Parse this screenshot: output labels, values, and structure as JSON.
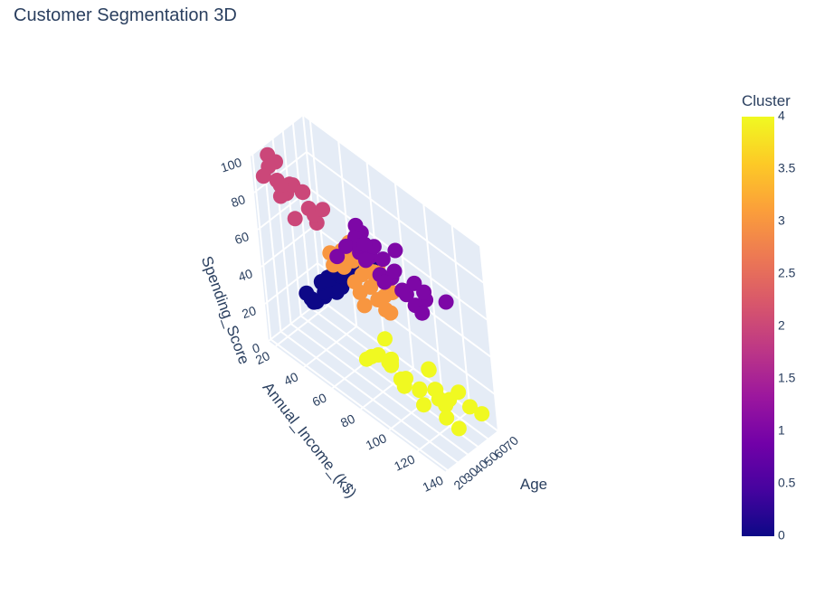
{
  "chart_data": {
    "type": "scatter",
    "mode": "3d",
    "title": "Customer Segmentation 3D",
    "axes": {
      "x": {
        "label": "Age",
        "range": [
          18,
          70
        ],
        "ticks": [
          20,
          30,
          40,
          50,
          60,
          70
        ]
      },
      "y": {
        "label": "Annual_Income_(k$)",
        "range": [
          15,
          140
        ],
        "ticks": [
          20,
          40,
          60,
          80,
          100,
          120,
          140
        ]
      },
      "z": {
        "label": "Spending_Score",
        "range": [
          0,
          100
        ],
        "ticks": [
          0,
          20,
          40,
          60,
          80,
          100
        ]
      }
    },
    "colorbar": {
      "title": "Cluster",
      "range": [
        0,
        4
      ],
      "ticks": [
        "0",
        "0.5",
        "1",
        "1.5",
        "2",
        "2.5",
        "3",
        "3.5",
        "4"
      ],
      "colorscale": [
        "#0d0887",
        "#46039f",
        "#7201a8",
        "#9c179e",
        "#bd3786",
        "#d8576b",
        "#ed7953",
        "#fb9f3a",
        "#fdca26",
        "#f0f921"
      ]
    },
    "clusters": [
      {
        "cluster": 0,
        "points": [
          [
            45,
            25,
            20
          ],
          [
            50,
            28,
            15
          ],
          [
            55,
            20,
            10
          ],
          [
            60,
            30,
            25
          ],
          [
            65,
            22,
            8
          ],
          [
            48,
            35,
            30
          ],
          [
            52,
            40,
            35
          ],
          [
            58,
            45,
            40
          ],
          [
            62,
            38,
            28
          ],
          [
            47,
            48,
            42
          ],
          [
            53,
            50,
            38
          ],
          [
            57,
            55,
            45
          ],
          [
            63,
            42,
            32
          ],
          [
            45,
            30,
            18
          ],
          [
            68,
            25,
            12
          ],
          [
            50,
            60,
            48
          ],
          [
            55,
            62,
            50
          ],
          [
            60,
            58,
            46
          ],
          [
            42,
            45,
            40
          ],
          [
            46,
            52,
            44
          ],
          [
            58,
            65,
            52
          ],
          [
            52,
            33,
            22
          ],
          [
            62,
            50,
            38
          ],
          [
            66,
            35,
            20
          ],
          [
            49,
            42,
            36
          ],
          [
            54,
            58,
            48
          ],
          [
            44,
            38,
            34
          ],
          [
            61,
            28,
            16
          ],
          [
            56,
            48,
            42
          ],
          [
            48,
            55,
            46
          ],
          [
            59,
            40,
            30
          ],
          [
            64,
            45,
            36
          ],
          [
            51,
            65,
            52
          ],
          [
            57,
            38,
            26
          ],
          [
            43,
            50,
            46
          ],
          [
            67,
            30,
            14
          ]
        ]
      },
      {
        "cluster": 1,
        "points": [
          [
            22,
            70,
            75
          ],
          [
            25,
            75,
            82
          ],
          [
            28,
            80,
            88
          ],
          [
            30,
            85,
            78
          ],
          [
            32,
            78,
            92
          ],
          [
            35,
            88,
            85
          ],
          [
            38,
            72,
            80
          ],
          [
            40,
            95,
            70
          ],
          [
            27,
            100,
            76
          ],
          [
            31,
            105,
            83
          ],
          [
            34,
            110,
            72
          ],
          [
            36,
            115,
            80
          ],
          [
            29,
            120,
            74
          ],
          [
            33,
            125,
            78
          ],
          [
            37,
            137,
            82
          ],
          [
            26,
            130,
            88
          ],
          [
            24,
            90,
            92
          ],
          [
            30,
            98,
            86
          ],
          [
            38,
            82,
            75
          ],
          [
            35,
            118,
            70
          ],
          [
            23,
            87,
            90
          ],
          [
            39,
            76,
            84
          ],
          [
            28,
            112,
            78
          ],
          [
            32,
            93,
            74
          ],
          [
            36,
            103,
            91
          ],
          [
            25,
            128,
            76
          ],
          [
            31,
            80,
            79
          ]
        ]
      },
      {
        "cluster": 2,
        "points": [
          [
            22,
            20,
            90
          ],
          [
            25,
            22,
            95
          ],
          [
            28,
            25,
            88
          ],
          [
            30,
            18,
            97
          ],
          [
            24,
            30,
            84
          ],
          [
            27,
            35,
            92
          ],
          [
            32,
            28,
            81
          ],
          [
            35,
            38,
            86
          ],
          [
            23,
            40,
            78
          ],
          [
            26,
            45,
            94
          ],
          [
            29,
            50,
            83
          ],
          [
            33,
            48,
            76
          ],
          [
            31,
            55,
            88
          ],
          [
            21,
            33,
            93
          ],
          [
            34,
            42,
            80
          ],
          [
            27,
            26,
            99
          ],
          [
            36,
            30,
            85
          ]
        ]
      },
      {
        "cluster": 3,
        "points": [
          [
            40,
            50,
            58
          ],
          [
            45,
            55,
            60
          ],
          [
            50,
            58,
            55
          ],
          [
            55,
            60,
            52
          ],
          [
            60,
            62,
            57
          ],
          [
            42,
            65,
            50
          ],
          [
            48,
            70,
            58
          ],
          [
            52,
            72,
            55
          ],
          [
            58,
            68,
            48
          ],
          [
            44,
            75,
            52
          ],
          [
            38,
            62,
            60
          ],
          [
            46,
            78,
            46
          ],
          [
            56,
            75,
            42
          ],
          [
            62,
            70,
            46
          ],
          [
            50,
            80,
            40
          ],
          [
            42,
            58,
            54
          ],
          [
            54,
            64,
            50
          ],
          [
            58,
            58,
            56
          ],
          [
            40,
            70,
            48
          ],
          [
            64,
            60,
            50
          ],
          [
            48,
            85,
            42
          ],
          [
            36,
            55,
            56
          ],
          [
            60,
            78,
            44
          ],
          [
            52,
            66,
            52
          ],
          [
            46,
            62,
            58
          ],
          [
            44,
            52,
            54
          ],
          [
            56,
            52,
            58
          ],
          [
            66,
            64,
            48
          ],
          [
            38,
            74,
            44
          ],
          [
            50,
            60,
            61
          ],
          [
            47,
            67,
            53
          ]
        ]
      },
      {
        "cluster": 4,
        "points": [
          [
            40,
            70,
            12
          ],
          [
            45,
            75,
            15
          ],
          [
            50,
            80,
            10
          ],
          [
            35,
            78,
            20
          ],
          [
            42,
            85,
            18
          ],
          [
            48,
            88,
            8
          ],
          [
            38,
            90,
            22
          ],
          [
            44,
            95,
            14
          ],
          [
            52,
            98,
            6
          ],
          [
            36,
            100,
            16
          ],
          [
            46,
            103,
            12
          ],
          [
            54,
            105,
            20
          ],
          [
            40,
            110,
            10
          ],
          [
            50,
            112,
            15
          ],
          [
            58,
            115,
            8
          ],
          [
            42,
            118,
            22
          ],
          [
            48,
            120,
            12
          ],
          [
            56,
            124,
            18
          ],
          [
            38,
            128,
            14
          ],
          [
            46,
            130,
            6
          ],
          [
            52,
            135,
            18
          ],
          [
            60,
            137,
            12
          ],
          [
            44,
            82,
            28
          ],
          [
            36,
            92,
            26
          ],
          [
            50,
            108,
            24
          ],
          [
            40,
            122,
            20
          ]
        ]
      }
    ]
  }
}
